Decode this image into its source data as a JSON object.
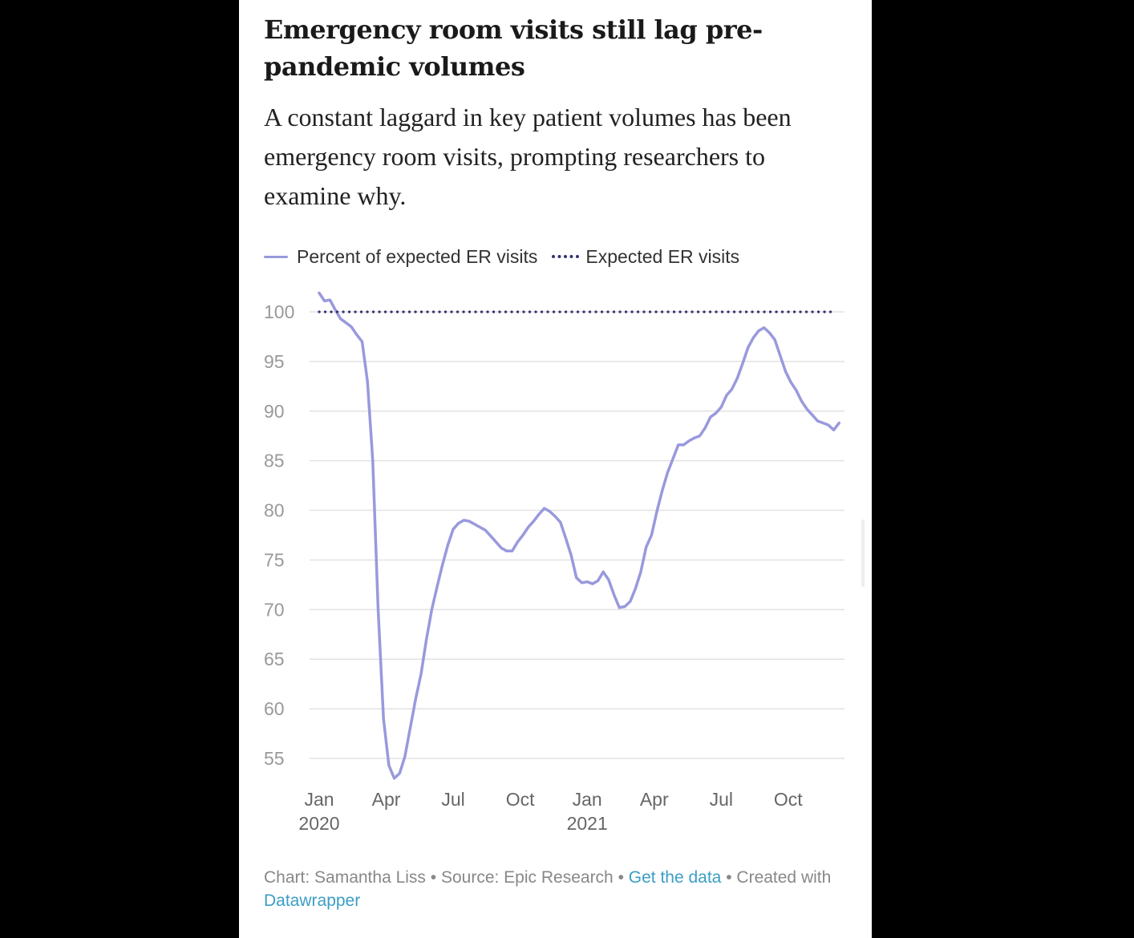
{
  "title": "Emergency room visits still lag pre-pandemic volumes",
  "subtitle": "A constant laggard in key patient volumes has been emergency room visits, prompting researchers to examine why.",
  "legend": {
    "series1": "Percent of expected ER visits",
    "series2": "Expected ER visits"
  },
  "footer": {
    "chart_label": "Chart: Samantha Liss",
    "sep": " • ",
    "source_label": "Source: Epic Research",
    "data_link": "Get the data",
    "created": "Created with",
    "tool_link": "Datawrapper"
  },
  "colors": {
    "series1": "#9999dd",
    "series2": "#33336e",
    "grid": "#e2e2e2",
    "axis_text": "#999999",
    "x_tick_text": "#666666",
    "link": "#3b9ec4"
  },
  "chart_data": {
    "type": "line",
    "x_range": [
      2020.0,
      2021.96
    ],
    "ylim": [
      52.5,
      100
    ],
    "y_ticks": [
      100,
      95,
      90,
      85,
      80,
      75,
      70,
      65,
      60,
      55
    ],
    "x_ticks": [
      {
        "pos": 2020.0,
        "label": "Jan",
        "label2": "2020"
      },
      {
        "pos": 2020.25,
        "label": "Apr",
        "label2": ""
      },
      {
        "pos": 2020.5,
        "label": "Jul",
        "label2": ""
      },
      {
        "pos": 2020.75,
        "label": "Oct",
        "label2": ""
      },
      {
        "pos": 2021.0,
        "label": "Jan",
        "label2": "2021"
      },
      {
        "pos": 2021.25,
        "label": "Apr",
        "label2": ""
      },
      {
        "pos": 2021.5,
        "label": "Jul",
        "label2": ""
      },
      {
        "pos": 2021.75,
        "label": "Oct",
        "label2": ""
      }
    ],
    "grid": true,
    "legend_position": "top-left",
    "series": [
      {
        "name": "Percent of expected ER visits",
        "style": "solid",
        "x": [
          2020.0,
          2020.02,
          2020.04,
          2020.06,
          2020.08,
          2020.1,
          2020.12,
          2020.14,
          2020.16,
          2020.18,
          2020.2,
          2020.22,
          2020.24,
          2020.26,
          2020.28,
          2020.3,
          2020.32,
          2020.34,
          2020.36,
          2020.38,
          2020.4,
          2020.42,
          2020.44,
          2020.46,
          2020.48,
          2020.5,
          2020.52,
          2020.54,
          2020.56,
          2020.58,
          2020.6,
          2020.62,
          2020.64,
          2020.66,
          2020.68,
          2020.7,
          2020.72,
          2020.74,
          2020.76,
          2020.78,
          2020.8,
          2020.82,
          2020.84,
          2020.86,
          2020.88,
          2020.9,
          2020.92,
          2020.94,
          2020.96,
          2020.98,
          2021.0,
          2021.02,
          2021.04,
          2021.06,
          2021.08,
          2021.1,
          2021.12,
          2021.14,
          2021.16,
          2021.18,
          2021.2,
          2021.22,
          2021.24,
          2021.26,
          2021.28,
          2021.3,
          2021.32,
          2021.34,
          2021.36,
          2021.38,
          2021.4,
          2021.42,
          2021.44,
          2021.46,
          2021.48,
          2021.5,
          2021.52,
          2021.54,
          2021.56,
          2021.58,
          2021.6,
          2021.62,
          2021.64,
          2021.66,
          2021.68,
          2021.7,
          2021.72,
          2021.74,
          2021.76,
          2021.78,
          2021.8,
          2021.82,
          2021.84,
          2021.86,
          2021.88,
          2021.9,
          2021.92,
          2021.94
        ],
        "values": [
          101.9,
          101.1,
          101.2,
          100.2,
          99.3,
          98.9,
          98.5,
          97.7,
          97.0,
          93.0,
          85.0,
          70.0,
          59.0,
          54.3,
          53.0,
          53.5,
          55.2,
          58.1,
          61.0,
          63.5,
          67.0,
          70.0,
          72.3,
          74.5,
          76.5,
          78.1,
          78.7,
          79.0,
          78.9,
          78.6,
          78.3,
          78.0,
          77.4,
          76.8,
          76.2,
          75.9,
          75.9,
          76.8,
          77.5,
          78.3,
          78.9,
          79.6,
          80.2,
          79.9,
          79.4,
          78.8,
          77.2,
          75.5,
          73.2,
          72.7,
          72.8,
          72.6,
          72.9,
          73.8,
          73.0,
          71.5,
          70.2,
          70.3,
          70.8,
          72.1,
          73.8,
          76.3,
          77.5,
          79.9,
          82.0,
          83.8,
          85.2,
          86.6,
          86.6,
          87.0,
          87.3,
          87.5,
          88.3,
          89.4,
          89.8,
          90.4,
          91.6,
          92.2,
          93.3,
          94.8,
          96.4,
          97.4,
          98.1,
          98.4,
          97.9,
          97.2,
          95.6,
          94.0,
          92.9,
          92.1,
          91.0,
          90.2,
          89.6,
          89.0,
          88.8,
          88.6,
          88.1,
          88.8
        ]
      },
      {
        "name": "Expected ER visits",
        "style": "dotted",
        "x": [
          2020.0,
          2021.92
        ],
        "values": [
          100,
          100
        ]
      }
    ]
  }
}
